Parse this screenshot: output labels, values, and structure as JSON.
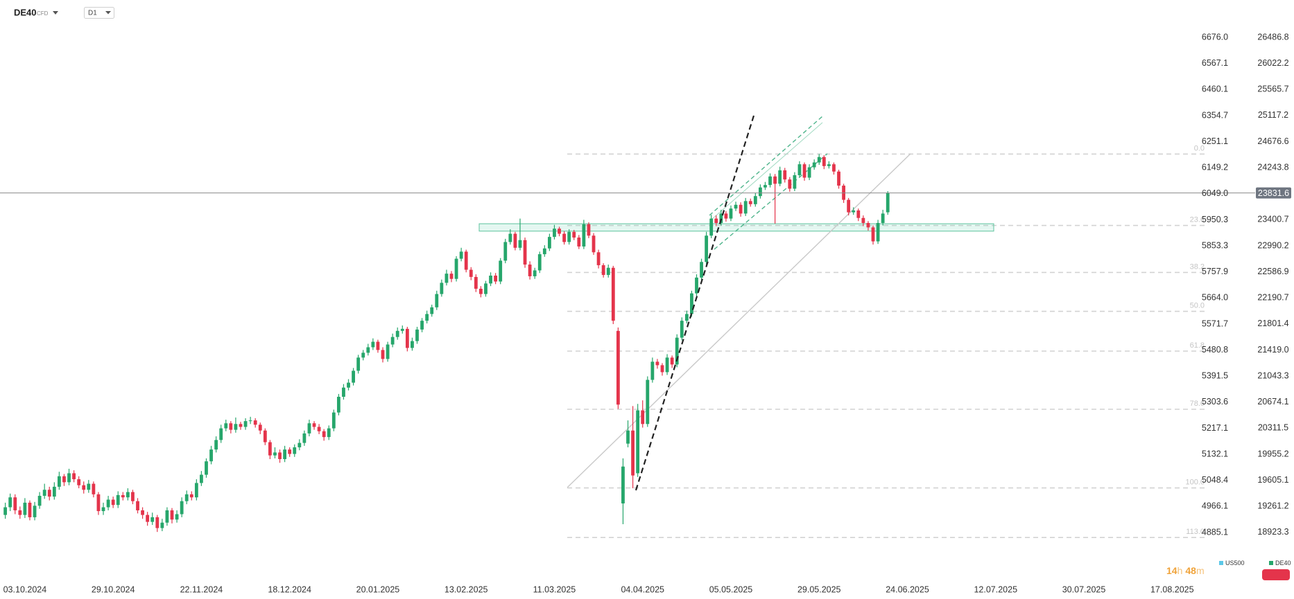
{
  "header": {
    "symbol": "DE40",
    "instrument_type": "CFD",
    "timeframe": "D1"
  },
  "chart_data": {
    "type": "candlestick",
    "log_scale": true,
    "grid": false,
    "x_labels": [
      "03.10.2024",
      "29.10.2024",
      "22.11.2024",
      "18.12.2024",
      "20.01.2025",
      "13.02.2025",
      "11.03.2025",
      "04.04.2025",
      "05.05.2025",
      "29.05.2025",
      "24.06.2025",
      "12.07.2025",
      "30.07.2025",
      "17.08.2025"
    ],
    "ylim": [
      18327,
      27168
    ],
    "yticks": [
      26486.8,
      26022.2,
      25565.7,
      25117.2,
      24676.6,
      24243.8,
      23400.7,
      22990.2,
      22586.9,
      22190.7,
      21801.4,
      {
        "value": 21419,
        "label": "21419.0"
      },
      21043.3,
      20674.1,
      20311.5,
      19955.2,
      19605.1,
      19261.2,
      18923.3
    ],
    "y2lim": [
      4742,
      6836
    ],
    "y2ticks": [
      {
        "value": 6676,
        "label": "6676.0"
      },
      6567.1,
      6460.1,
      6354.7,
      6251.1,
      6149.2,
      {
        "value": 6049,
        "label": "6049.0"
      },
      5950.3,
      5853.3,
      5757.9,
      {
        "value": 5664,
        "label": "5664.0"
      },
      5571.7,
      5480.8,
      5391.5,
      5303.6,
      5217.1,
      5132.1,
      5048.4,
      4966.1,
      4885.1
    ],
    "last_price": 23831.6,
    "zone": [
      23221,
      23338
    ],
    "fibonacci": {
      "ratios": [
        {
          "value": 0,
          "label": "0.0"
        },
        23.6,
        38.2,
        {
          "value": 50,
          "label": "50.0"
        },
        61.8,
        78.6,
        {
          "value": 100,
          "label": "100.0"
        },
        {
          "value": 113,
          "label": "113.0"
        }
      ],
      "levels": [
        24469,
        23311,
        22578,
        21990,
        21404,
        20575,
        19505,
        18859
      ]
    },
    "countdown": [
      "14",
      "h",
      "48",
      "m"
    ],
    "series": [
      {
        "name": "US500",
        "color": "#5bc8e8",
        "axis": "y2"
      },
      {
        "name": "DE40",
        "color": "#26a66b",
        "up_color": "#26a66b",
        "down_color": "#e4344b",
        "axis": "y",
        "open": [
          19150,
          19250,
          19380,
          19210,
          19150,
          19310,
          19120,
          19270,
          19400,
          19480,
          19390,
          19520,
          19660,
          19580,
          19700,
          19620,
          19540,
          19480,
          19560,
          19420,
          19200,
          19250,
          19350,
          19280,
          19410,
          19380,
          19450,
          19330,
          19210,
          19150,
          19060,
          19120,
          18980,
          19050,
          19210,
          19090,
          19160,
          19330,
          19420,
          19380,
          19570,
          19680,
          19860,
          20020,
          20150,
          20310,
          20380,
          20290,
          20370,
          20330,
          20410,
          20420,
          20360,
          20280,
          20120,
          19940,
          19980,
          19890,
          20020,
          19960,
          20050,
          20110,
          20240,
          20380,
          20330,
          20270,
          20190,
          20310,
          20530,
          20750,
          20880,
          20950,
          21120,
          21310,
          21380,
          21460,
          21540,
          21420,
          21290,
          21500,
          21610,
          21700,
          21730,
          21450,
          21550,
          21720,
          21850,
          21950,
          22050,
          22250,
          22420,
          22560,
          22480,
          22790,
          22900,
          22620,
          22510,
          22330,
          22250,
          22410,
          22530,
          22440,
          22760,
          23050,
          23180,
          22960,
          23080,
          22700,
          22520,
          22610,
          22860,
          22950,
          23130,
          23260,
          23180,
          23050,
          23210,
          23120,
          22980,
          23330,
          23150,
          22890,
          22690,
          22540,
          22650,
          21700,
          19300,
          20100,
          20280,
          19700,
          20560,
          20370,
          20990,
          21250,
          21200,
          21100,
          21310,
          21210,
          21600,
          21850,
          21950,
          22260,
          22500,
          22740,
          23150,
          23420,
          23350,
          23500,
          23420,
          23580,
          23640,
          23500,
          23700,
          23650,
          23780,
          23920,
          23960,
          24100,
          23980,
          24200,
          24050,
          23900,
          24120,
          24300,
          24080,
          24250,
          24330,
          24420,
          24270,
          24300,
          24180,
          23950,
          23720,
          23520,
          23550,
          23430,
          23350,
          23280,
          23060,
          23350,
          23520
        ],
        "high": [
          19310,
          19430,
          19420,
          19260,
          19370,
          19340,
          19320,
          19450,
          19560,
          19520,
          19580,
          19720,
          19690,
          19760,
          19740,
          19660,
          19590,
          19610,
          19590,
          19450,
          19310,
          19400,
          19390,
          19460,
          19450,
          19500,
          19480,
          19370,
          19250,
          19190,
          19180,
          19150,
          19100,
          19250,
          19240,
          19210,
          19380,
          19470,
          19460,
          19620,
          19730,
          19900,
          20070,
          20200,
          20360,
          20430,
          20410,
          20460,
          20400,
          20450,
          20470,
          20450,
          20390,
          20310,
          20150,
          20050,
          20020,
          20070,
          20050,
          20090,
          20160,
          20280,
          20430,
          20410,
          20370,
          20300,
          20350,
          20570,
          20790,
          20930,
          21000,
          21160,
          21350,
          21420,
          21510,
          21590,
          21570,
          21460,
          21540,
          21660,
          21750,
          21780,
          21760,
          21600,
          21760,
          21890,
          22000,
          22090,
          22300,
          22470,
          22620,
          22600,
          22830,
          22960,
          22930,
          22660,
          22550,
          22370,
          22450,
          22580,
          22570,
          22800,
          23100,
          23250,
          23210,
          23420,
          23120,
          22750,
          22650,
          22900,
          23000,
          23180,
          23320,
          23290,
          23220,
          23250,
          23240,
          23160,
          23400,
          23360,
          23190,
          22930,
          22720,
          22700,
          22680,
          21750,
          19900,
          20420,
          20620,
          20650,
          20700,
          21040,
          21310,
          21290,
          21230,
          21360,
          21340,
          21650,
          21900,
          22000,
          22300,
          22550,
          22790,
          23210,
          23480,
          23470,
          23560,
          23540,
          23630,
          23690,
          23680,
          23750,
          23740,
          23830,
          23970,
          24010,
          24150,
          24140,
          24260,
          24240,
          24090,
          24170,
          24350,
          24330,
          24300,
          24380,
          24470,
          24450,
          24350,
          24330,
          24210,
          23980,
          23750,
          23600,
          23580,
          23470,
          23380,
          23310,
          23400,
          23560,
          23860
        ],
        "low": [
          19100,
          19200,
          19160,
          19100,
          19110,
          19080,
          19080,
          19230,
          19360,
          19340,
          19350,
          19480,
          19530,
          19540,
          19580,
          19500,
          19430,
          19440,
          19380,
          19150,
          19150,
          19210,
          19240,
          19240,
          19340,
          19340,
          19290,
          19170,
          19100,
          19010,
          19020,
          18930,
          18940,
          19010,
          19040,
          19050,
          19120,
          19290,
          19340,
          19340,
          19530,
          19640,
          19820,
          19980,
          20110,
          20270,
          20240,
          20250,
          20290,
          20290,
          20370,
          20320,
          20230,
          20080,
          19890,
          19900,
          19840,
          19850,
          19920,
          19920,
          20010,
          20070,
          20200,
          20290,
          20230,
          20140,
          20150,
          20270,
          20490,
          20710,
          20840,
          20910,
          21080,
          21270,
          21340,
          21420,
          21380,
          21240,
          21250,
          21460,
          21570,
          21660,
          21400,
          21410,
          21510,
          21680,
          21810,
          21910,
          22010,
          22210,
          22380,
          22430,
          22440,
          22750,
          22580,
          22460,
          22280,
          22200,
          22210,
          22370,
          22400,
          22400,
          22720,
          23010,
          22920,
          22920,
          22650,
          22470,
          22480,
          22570,
          22820,
          22910,
          23090,
          23140,
          23010,
          23010,
          23080,
          22940,
          22940,
          23110,
          22850,
          22640,
          22500,
          22500,
          21800,
          20580,
          19030,
          20050,
          19500,
          19650,
          20320,
          20330,
          20950,
          21150,
          21050,
          21060,
          21160,
          21170,
          21560,
          21810,
          21910,
          22220,
          22460,
          22700,
          23110,
          23300,
          23310,
          23370,
          23380,
          23540,
          23450,
          23460,
          23610,
          23610,
          23740,
          23880,
          23920,
          23340,
          23940,
          24000,
          23850,
          23860,
          24080,
          24030,
          24040,
          24210,
          24290,
          24220,
          24230,
          24130,
          23900,
          23670,
          23470,
          23480,
          23380,
          23300,
          23230,
          23010,
          23020,
          23310,
          23480
        ],
        "close": [
          19250,
          19380,
          19210,
          19150,
          19310,
          19120,
          19270,
          19400,
          19480,
          19390,
          19520,
          19660,
          19580,
          19700,
          19620,
          19540,
          19480,
          19560,
          19420,
          19200,
          19250,
          19350,
          19280,
          19410,
          19380,
          19450,
          19330,
          19210,
          19150,
          19060,
          19120,
          18980,
          19050,
          19210,
          19090,
          19160,
          19330,
          19420,
          19380,
          19570,
          19680,
          19860,
          20020,
          20150,
          20310,
          20380,
          20290,
          20370,
          20330,
          20410,
          20420,
          20360,
          20280,
          20120,
          19940,
          19980,
          19890,
          20020,
          19960,
          20050,
          20110,
          20240,
          20380,
          20330,
          20270,
          20190,
          20310,
          20530,
          20750,
          20880,
          20950,
          21120,
          21310,
          21380,
          21460,
          21540,
          21420,
          21290,
          21500,
          21610,
          21700,
          21730,
          21450,
          21550,
          21720,
          21850,
          21950,
          22050,
          22250,
          22420,
          22560,
          22480,
          22790,
          22900,
          22620,
          22510,
          22330,
          22250,
          22410,
          22530,
          22440,
          22760,
          23050,
          23180,
          22960,
          23080,
          22700,
          22520,
          22610,
          22860,
          22950,
          23130,
          23260,
          23180,
          23050,
          23210,
          23120,
          22980,
          23330,
          23150,
          22890,
          22690,
          22540,
          22650,
          21850,
          20640,
          19790,
          20280,
          19670,
          20560,
          20370,
          20990,
          21250,
          21200,
          21100,
          21310,
          21210,
          21600,
          21850,
          21950,
          22260,
          22500,
          22740,
          23150,
          23420,
          23350,
          23500,
          23420,
          23580,
          23640,
          23500,
          23700,
          23650,
          23780,
          23920,
          23960,
          24100,
          23980,
          24200,
          24050,
          23900,
          24120,
          24300,
          24080,
          24250,
          24330,
          24420,
          24270,
          24300,
          24180,
          23950,
          23720,
          23520,
          23550,
          23430,
          23350,
          23280,
          23060,
          23350,
          23500,
          23830
        ]
      }
    ]
  }
}
